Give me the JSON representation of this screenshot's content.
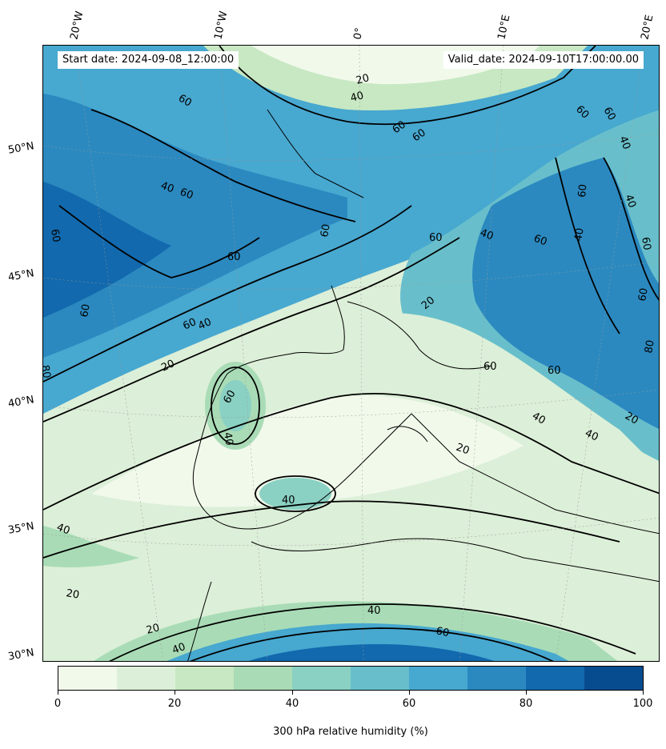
{
  "header": {
    "start_date": "Start date: 2024-09-08_12:00:00",
    "valid_date": "Valid_date: 2024-09-10T17:00:00.00"
  },
  "axes": {
    "longitude_labels": [
      "20°W",
      "10°W",
      "0°",
      "10°E",
      "20°E"
    ],
    "latitude_labels": [
      "50°N",
      "45°N",
      "40°N",
      "35°N",
      "30°N"
    ]
  },
  "colorbar": {
    "title": "300 hPa relative humidity (%)",
    "tick_labels": [
      "0",
      "20",
      "40",
      "60",
      "80",
      "100"
    ],
    "colors": [
      "#f1f9eb",
      "#dcefd8",
      "#c7e8c2",
      "#a9dcb6",
      "#8ad1c3",
      "#68bfcb",
      "#47a8d0",
      "#2b89c0",
      "#1269ad",
      "#074c8f"
    ]
  },
  "contour_labels": [
    "20",
    "40",
    "60",
    "80"
  ]
}
